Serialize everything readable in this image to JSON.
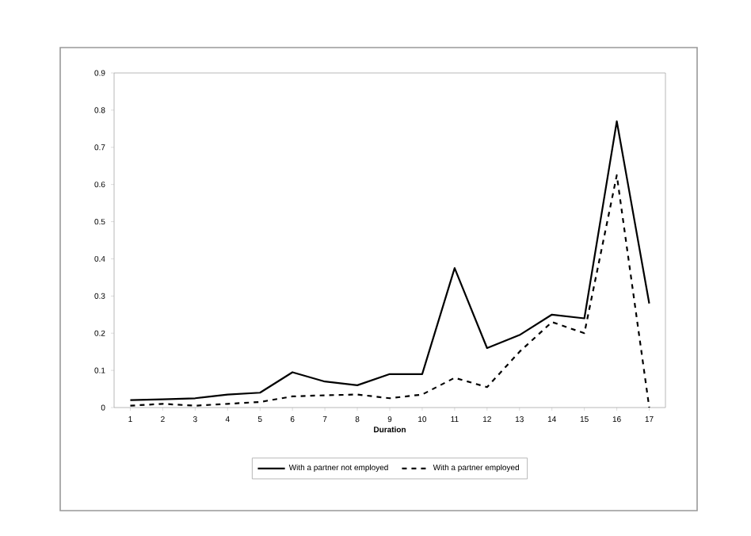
{
  "chart_data": {
    "type": "line",
    "xlabel": "Duration",
    "categories": [
      "1",
      "2",
      "3",
      "4",
      "5",
      "6",
      "7",
      "8",
      "9",
      "10",
      "11",
      "12",
      "13",
      "14",
      "15",
      "16",
      "17"
    ],
    "series": [
      {
        "name": "With a partner not employed",
        "color": "#000000",
        "line_style": "solid",
        "values": [
          0.02,
          0.022,
          0.025,
          0.035,
          0.04,
          0.095,
          0.07,
          0.06,
          0.09,
          0.09,
          0.375,
          0.16,
          0.195,
          0.25,
          0.24,
          0.77,
          0.28
        ]
      },
      {
        "name": "With a partner employed",
        "color": "#000000",
        "line_style": "dashed",
        "values": [
          0.005,
          0.01,
          0.005,
          0.01,
          0.015,
          0.03,
          0.033,
          0.035,
          0.025,
          0.035,
          0.08,
          0.055,
          0.15,
          0.23,
          0.2,
          0.625,
          0.0
        ]
      }
    ],
    "ylim": [
      0,
      0.9
    ],
    "yticks": [
      0,
      0.1,
      0.2,
      0.3,
      0.4,
      0.5,
      0.6,
      0.7,
      0.8,
      0.9
    ],
    "legend": "bottom",
    "marker": "none"
  }
}
